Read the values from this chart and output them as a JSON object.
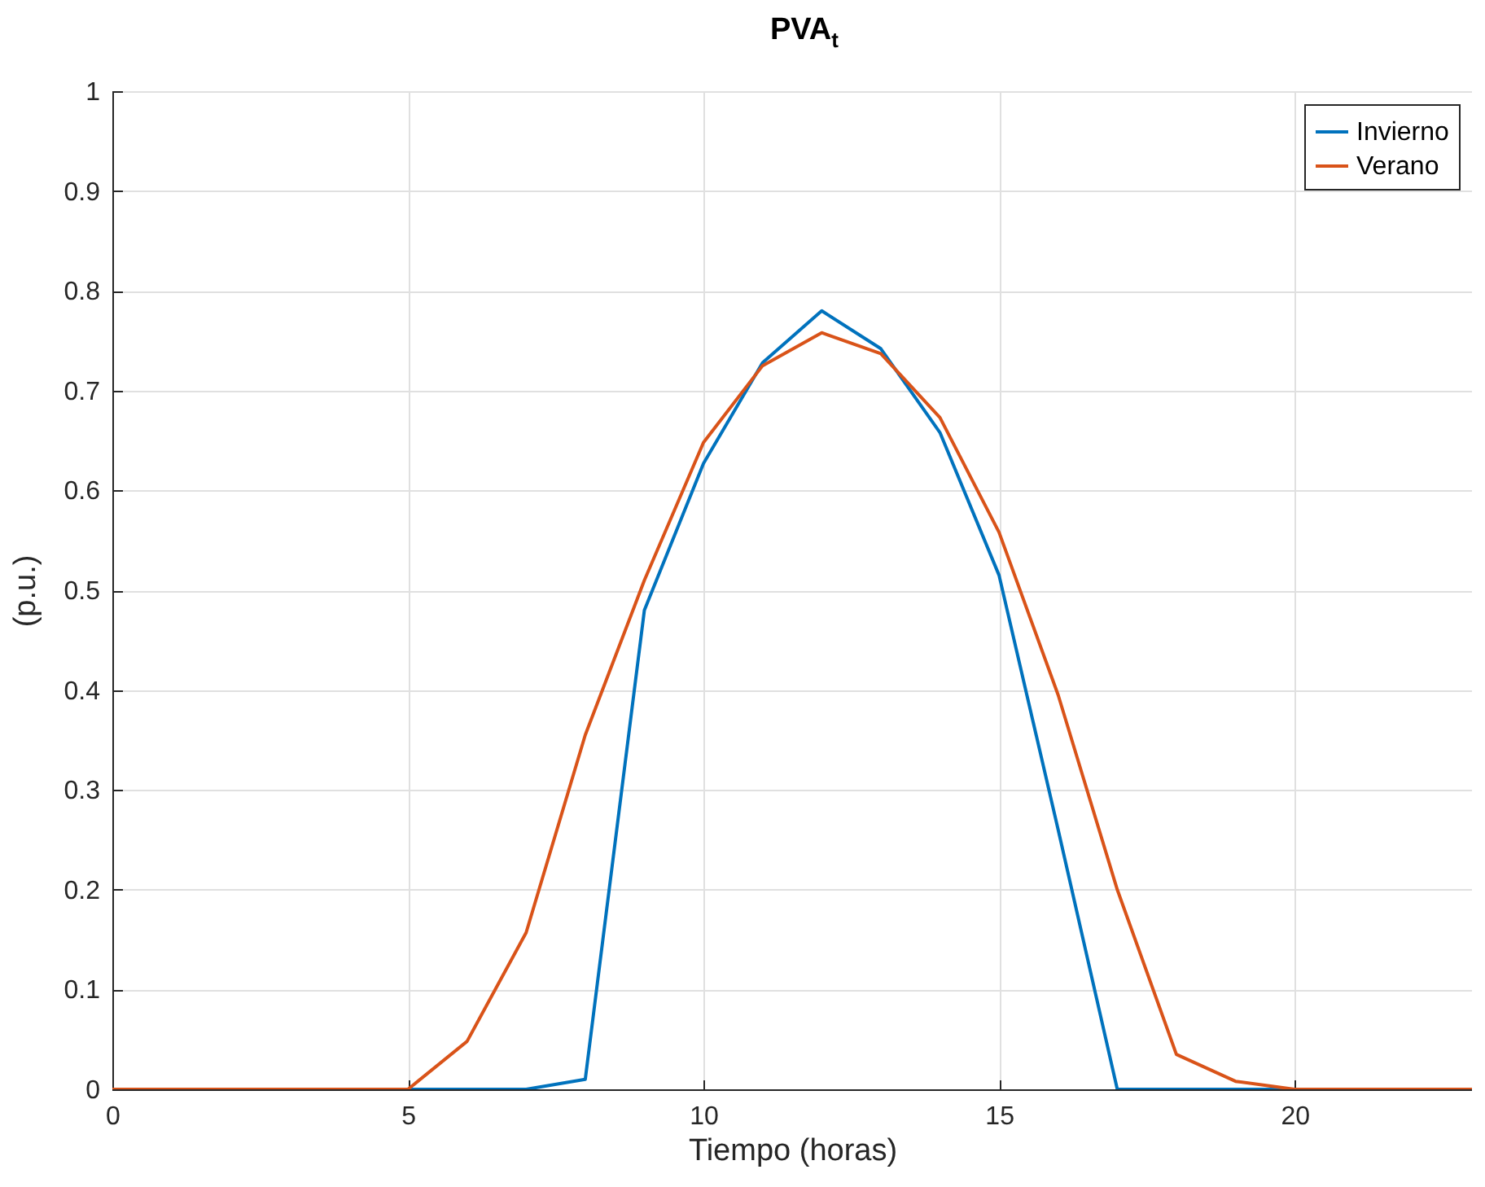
{
  "chart_data": {
    "type": "line",
    "title": "PVA$_{t}$",
    "xlabel": "Tiempo (horas)",
    "ylabel": "(p.u.)",
    "x": [
      0,
      1,
      2,
      3,
      4,
      5,
      6,
      7,
      8,
      9,
      10,
      11,
      12,
      13,
      14,
      15,
      16,
      17,
      18,
      19,
      20,
      21,
      22,
      23
    ],
    "series": [
      {
        "name": "Invierno",
        "color": "#0072bd",
        "values": [
          null,
          null,
          null,
          null,
          0,
          0,
          0,
          0,
          0.01,
          0.48,
          0.627,
          0.728,
          0.78,
          0.742,
          0.658,
          0.515,
          0.26,
          0,
          0,
          0,
          0,
          0,
          null,
          null
        ]
      },
      {
        "name": "Verano",
        "color": "#d95319",
        "values": [
          0,
          0,
          0,
          0,
          0,
          0,
          0.048,
          0.157,
          0.355,
          0.51,
          0.648,
          0.725,
          0.758,
          0.737,
          0.673,
          0.558,
          0.395,
          0.2,
          0.035,
          0.008,
          0,
          0,
          0,
          0
        ]
      }
    ],
    "xlim": [
      0,
      23
    ],
    "xticks": [
      0,
      5,
      10,
      15,
      20
    ],
    "ylim": [
      0,
      1
    ],
    "yticks": [
      0,
      0.1,
      0.2,
      0.3,
      0.4,
      0.5,
      0.6,
      0.7,
      0.8,
      0.9,
      1
    ],
    "grid": true,
    "legend": "top right",
    "marker": "none",
    "line_style": "solid"
  }
}
